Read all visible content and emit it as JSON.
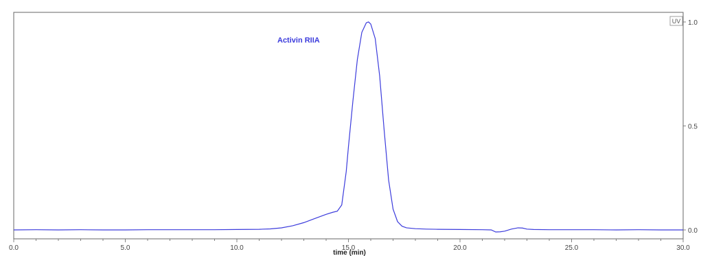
{
  "chart_data": {
    "type": "line",
    "xlabel": "time (min)",
    "x_tick_labels": [
      "0.0",
      "5.0",
      "10.0",
      "15.0",
      "20.0",
      "25.0",
      "30.0"
    ],
    "x_ticks": [
      0,
      5,
      10,
      15,
      20,
      25,
      30
    ],
    "y_tick_labels": [
      "0.0",
      "0.5",
      "1.0"
    ],
    "y_ticks": [
      0,
      0.5,
      1.0
    ],
    "xlim": [
      0,
      30
    ],
    "ylim": [
      0,
      1.0
    ],
    "legend": "UV",
    "annotation": "Activin RIIA",
    "colors": {
      "line": "#3b3bdc",
      "annotation": "#3b3bdc",
      "frame": "#666666"
    },
    "series": [
      {
        "x": [
          0,
          1,
          2,
          3,
          4,
          5,
          6,
          7,
          8,
          9,
          10,
          11,
          11.5,
          12,
          12.5,
          13,
          13.5,
          14,
          14.3,
          14.5,
          14.7,
          14.9,
          15.0,
          15.2,
          15.4,
          15.6,
          15.8,
          15.9,
          16.0,
          16.2,
          16.4,
          16.6,
          16.8,
          17.0,
          17.2,
          17.4,
          17.6,
          18,
          18.5,
          19,
          20,
          21,
          21.4,
          21.6,
          21.8,
          22.0,
          22.3,
          22.6,
          22.8,
          23.0,
          23.3,
          24,
          25,
          26,
          27,
          28,
          29,
          30
        ],
        "values": [
          0.0,
          0.001,
          0.0,
          0.001,
          0.0,
          0.0,
          0.001,
          0.001,
          0.001,
          0.001,
          0.002,
          0.003,
          0.005,
          0.01,
          0.02,
          0.035,
          0.055,
          0.075,
          0.085,
          0.09,
          0.12,
          0.28,
          0.4,
          0.62,
          0.82,
          0.95,
          0.996,
          1.0,
          0.99,
          0.92,
          0.74,
          0.48,
          0.24,
          0.1,
          0.04,
          0.018,
          0.01,
          0.006,
          0.004,
          0.003,
          0.002,
          0.001,
          0.0,
          -0.01,
          -0.009,
          -0.006,
          0.004,
          0.01,
          0.009,
          0.004,
          0.002,
          0.001,
          0.001,
          0.001,
          0.0,
          0.001,
          0.0,
          0.0
        ]
      }
    ]
  }
}
